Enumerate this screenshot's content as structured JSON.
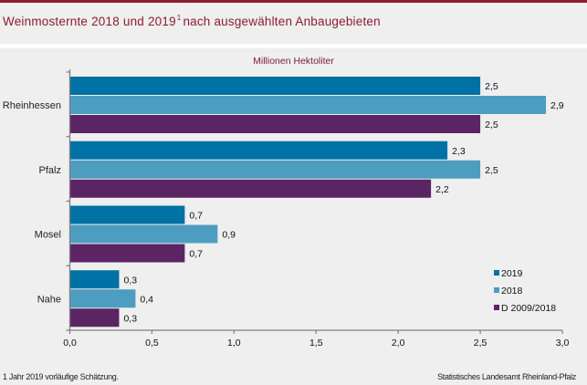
{
  "header": {
    "title_main_1": "Weinmosternte 2018 und 2019",
    "title_footnote_mark": "1",
    "title_main_2": "nach ausgewählten Anbaugebieten"
  },
  "footer": {
    "footnote": "1 Jahr 2019 vorläufige  Schätzung.",
    "source": "Statistisches Landesamt Rheinland-Pfalz"
  },
  "chart_data": {
    "type": "bar",
    "orientation": "horizontal",
    "title": "Weinmosternte 2018 und 2019 nach ausgewählten Anbaugebieten",
    "subtitle": "Millionen Hektoliter",
    "categories": [
      "Rheinhessen",
      "Pfalz",
      "Mosel",
      "Nahe"
    ],
    "series": [
      {
        "name": "2019",
        "color": "#0071a4",
        "values": [
          2.5,
          2.3,
          0.7,
          0.3
        ],
        "labels": [
          "2,5",
          "2,3",
          "0,7",
          "0,3"
        ]
      },
      {
        "name": "2018",
        "color": "#4d9dc0",
        "values": [
          2.9,
          2.5,
          0.9,
          0.4
        ],
        "labels": [
          "2,9",
          "2,5",
          "0,9",
          "0,4"
        ]
      },
      {
        "name": "D 2009/2018",
        "color": "#5b2463",
        "values": [
          2.5,
          2.2,
          0.7,
          0.3
        ],
        "labels": [
          "2,5",
          "2,2",
          "0,7",
          "0,3"
        ]
      }
    ],
    "xlim": [
      0,
      3.0
    ],
    "xticks": [
      0,
      0.5,
      1.0,
      1.5,
      2.0,
      2.5,
      3.0
    ],
    "xtick_labels": [
      "0,0",
      "0,5",
      "1,0",
      "1,5",
      "2,0",
      "2,5",
      "3,0"
    ],
    "xlabel": "",
    "ylabel": "",
    "grid": false,
    "legend_position": "bottom-right"
  }
}
